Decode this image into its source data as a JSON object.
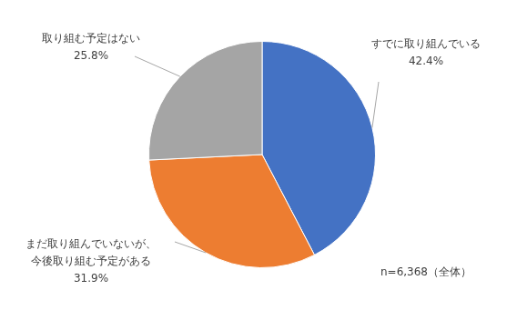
{
  "chart_data": {
    "type": "pie",
    "categories": [
      "すでに取り組んでいる",
      "まだ取り組んでいないが、\n今後取り組む予定がある",
      "取り組む予定はない"
    ],
    "values": [
      42.4,
      31.9,
      25.8
    ],
    "value_labels": [
      "42.4%",
      "31.9%",
      "25.8%"
    ],
    "colors": [
      "#4472c4",
      "#ed7d31",
      "#a5a5a5"
    ],
    "annotations": [
      "n=6,368（全体）"
    ],
    "data_labels": true,
    "legend": false
  }
}
